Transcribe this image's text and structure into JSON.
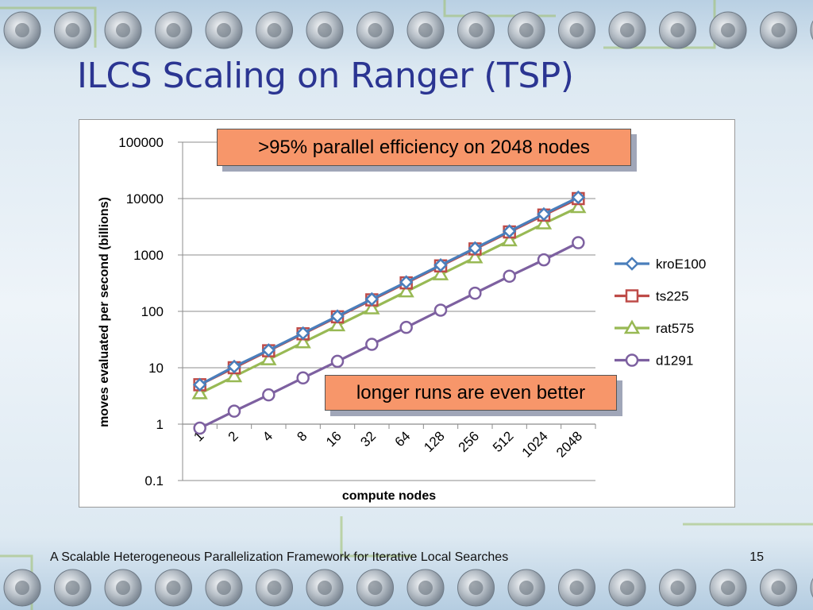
{
  "slide": {
    "title": "ILCS Scaling on Ranger (TSP)",
    "footer": "A Scalable Heterogeneous Parallelization Framework for Iterative Local Searches",
    "page_number": "15"
  },
  "annotations": {
    "top": ">95% parallel efficiency on 2048 nodes",
    "bottom": "longer runs are even better"
  },
  "colors": {
    "title": "#2b3592",
    "callout_fill": "#f7966a",
    "kroE100": "#4a7ebb",
    "ts225": "#be4b48",
    "rat575": "#98b954",
    "d1291": "#7d60a0"
  },
  "chart_data": {
    "type": "line",
    "title": "",
    "xlabel": "compute nodes",
    "ylabel": "moves evaluated per second (billions)",
    "yscale": "log",
    "ylim": [
      0.1,
      100000
    ],
    "yticks": [
      "100000",
      "10000",
      "1000",
      "100",
      "10",
      "1",
      "0.1"
    ],
    "categories": [
      "1",
      "2",
      "4",
      "8",
      "16",
      "32",
      "64",
      "128",
      "256",
      "512",
      "1024",
      "2048"
    ],
    "legend_position": "right",
    "grid": "horizontal",
    "series": [
      {
        "name": "kroE100",
        "marker": "diamond",
        "color": "#4a7ebb",
        "values": [
          5,
          10.5,
          20.5,
          41,
          82,
          165,
          330,
          660,
          1320,
          2640,
          5300,
          10500
        ]
      },
      {
        "name": "ts225",
        "marker": "square",
        "color": "#be4b48",
        "values": [
          5,
          10,
          20,
          40,
          80,
          160,
          320,
          640,
          1280,
          2560,
          5100,
          10000
        ]
      },
      {
        "name": "rat575",
        "marker": "triangle",
        "color": "#98b954",
        "values": [
          3.5,
          7,
          14,
          28,
          56,
          112,
          224,
          450,
          900,
          1800,
          3600,
          7000
        ]
      },
      {
        "name": "d1291",
        "marker": "circle",
        "color": "#7d60a0",
        "values": [
          0.85,
          1.7,
          3.3,
          6.6,
          13,
          26,
          52,
          105,
          210,
          420,
          820,
          1650
        ]
      }
    ]
  }
}
